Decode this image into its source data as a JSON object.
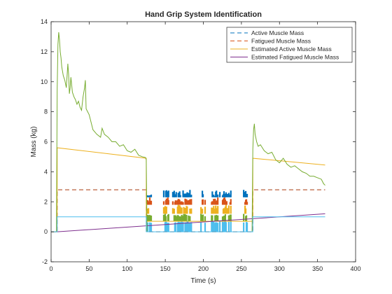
{
  "chart_data": {
    "type": "line",
    "title": "Hand Grip System Identification",
    "xlabel": "Time (s)",
    "ylabel": "Mass (kg)",
    "xlim": [
      0,
      400
    ],
    "ylim": [
      -2,
      14
    ],
    "xticks": [
      0,
      50,
      100,
      150,
      200,
      250,
      300,
      350,
      400
    ],
    "yticks": [
      -2,
      0,
      2,
      4,
      6,
      8,
      10,
      12,
      14
    ],
    "grid": false,
    "legend_position": "top-right",
    "legend": [
      {
        "label": "Active Muscle Mass",
        "color": "#0072BD",
        "style": "dashed"
      },
      {
        "label": "Fatigued Muscle Mass",
        "color": "#D95319",
        "style": "dashed"
      },
      {
        "label": "Estimated Active Muscle Mass",
        "color": "#EDB120",
        "style": "solid"
      },
      {
        "label": "Estimated Fatigued Muscle Mass",
        "color": "#7E2F8E",
        "style": "solid"
      }
    ],
    "series": [
      {
        "name": "Active Muscle Mass",
        "color": "#0072BD",
        "style": "dashed",
        "x": [
          0,
          8,
          8,
          125,
          125,
          265,
          265,
          360
        ],
        "y": [
          0,
          0,
          2.8,
          2.8,
          0,
          0,
          2.8,
          2.8
        ]
      },
      {
        "name": "Fatigued Muscle Mass",
        "color": "#D95319",
        "style": "dashed",
        "x": [
          0,
          8,
          8,
          125,
          125,
          265,
          265,
          360
        ],
        "y": [
          0,
          0,
          2.8,
          2.8,
          0,
          0,
          2.8,
          2.8
        ]
      },
      {
        "name": "Estimated Active Muscle Mass",
        "color": "#EDB120",
        "style": "solid",
        "x": [
          0,
          8,
          8,
          125,
          125,
          265,
          265,
          360
        ],
        "y": [
          0,
          0,
          5.6,
          4.9,
          0.7,
          0.7,
          4.9,
          4.45
        ]
      },
      {
        "name": "Estimated Fatigued Muscle Mass",
        "color": "#7E2F8E",
        "style": "solid",
        "x": [
          0,
          8,
          360
        ],
        "y": [
          0,
          0,
          1.2
        ]
      },
      {
        "color": "#77AC30",
        "style": "solid",
        "x": [
          0,
          7,
          8,
          9,
          10,
          11,
          12,
          13,
          14,
          16,
          18,
          20,
          22,
          23,
          24,
          25,
          26,
          28,
          30,
          32,
          34,
          36,
          38,
          40,
          42,
          44,
          45,
          46,
          48,
          50,
          55,
          60,
          65,
          67,
          70,
          75,
          80,
          85,
          90,
          95,
          100,
          105,
          110,
          115,
          120,
          124,
          125,
          126
        ],
        "y": [
          0,
          0,
          9.5,
          12.5,
          13.3,
          12.8,
          12.0,
          11.6,
          11.0,
          10.4,
          10.1,
          9.6,
          11.2,
          10.5,
          9.2,
          9.6,
          10.3,
          9.3,
          9.0,
          8.8,
          8.5,
          8.7,
          8.3,
          8.1,
          9.0,
          9.6,
          10.1,
          8.2,
          8.0,
          7.8,
          6.8,
          6.5,
          6.3,
          6.9,
          6.5,
          6.3,
          6.0,
          6.0,
          5.7,
          5.8,
          5.4,
          5.3,
          5.5,
          5.1,
          5.0,
          4.95,
          4.8,
          0
        ]
      },
      {
        "color": "#77AC30",
        "style": "solid",
        "x": [
          264,
          265,
          266,
          267,
          268,
          270,
          272,
          275,
          280,
          285,
          290,
          295,
          300,
          305,
          310,
          315,
          320,
          325,
          330,
          335,
          340,
          345,
          350,
          355,
          358,
          360
        ],
        "y": [
          0,
          5.5,
          6.8,
          7.2,
          6.5,
          6.0,
          5.7,
          5.8,
          5.4,
          5.2,
          5.3,
          4.8,
          4.6,
          4.9,
          4.5,
          4.3,
          4.4,
          4.2,
          4.0,
          3.9,
          3.7,
          3.7,
          3.6,
          3.5,
          3.2,
          3.1
        ]
      },
      {
        "color": "#4DBEEE",
        "style": "solid",
        "x": [
          0,
          8,
          8,
          125,
          125,
          265,
          265,
          360
        ],
        "y": [
          0,
          0,
          1.0,
          1.0,
          0,
          0,
          1.0,
          1.0
        ]
      }
    ]
  }
}
